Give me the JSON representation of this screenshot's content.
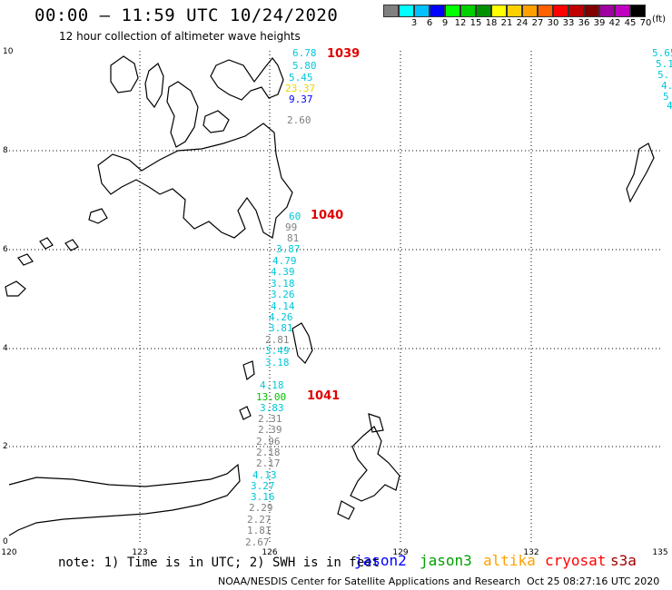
{
  "header": {
    "title": "00:00 – 11:59 UTC 10/24/2020",
    "subtitle": "12 hour collection of altimeter wave heights"
  },
  "legend": {
    "units": "(ft)",
    "bins": [
      {
        "label": "",
        "color": "#808080"
      },
      {
        "label": "3",
        "color": "#00ffff"
      },
      {
        "label": "6",
        "color": "#00c0ff"
      },
      {
        "label": "9",
        "color": "#0000ff"
      },
      {
        "label": "12",
        "color": "#00ff00"
      },
      {
        "label": "15",
        "color": "#00d000"
      },
      {
        "label": "18",
        "color": "#009000"
      },
      {
        "label": "21",
        "color": "#ffff00"
      },
      {
        "label": "24",
        "color": "#ffd000"
      },
      {
        "label": "27",
        "color": "#ffa000"
      },
      {
        "label": "30",
        "color": "#ff6000"
      },
      {
        "label": "33",
        "color": "#ff0000"
      },
      {
        "label": "36",
        "color": "#c00000"
      },
      {
        "label": "39",
        "color": "#800000"
      },
      {
        "label": "42",
        "color": "#a000a0"
      },
      {
        "label": "45",
        "color": "#c000c0"
      },
      {
        "label": "70",
        "color": "#000000"
      }
    ]
  },
  "axes": {
    "lat_ticks": [
      "10",
      "8",
      "6",
      "4",
      "2",
      "0"
    ],
    "lon_ticks": [
      "120",
      "123",
      "126",
      "129",
      "132",
      "135"
    ]
  },
  "tracks": {
    "rev_labels": [
      "1039",
      "1040",
      "1041"
    ],
    "main": [
      {
        "value": "6.78",
        "color": "#00c8d8"
      },
      {
        "value": "5.80",
        "color": "#00c8d8"
      },
      {
        "value": "5.45",
        "color": "#00c8d8"
      },
      {
        "value": "23.37",
        "color": "#e8d800"
      },
      {
        "value": "9.37",
        "color": "#0000ff"
      },
      {
        "value": "2.60",
        "color": "#808080"
      },
      {
        "value": "60",
        "color": "#00c8d8"
      },
      {
        "value": "99",
        "color": "#808080"
      },
      {
        "value": "81",
        "color": "#808080"
      },
      {
        "value": "3.87",
        "color": "#00c8d8"
      },
      {
        "value": "4.79",
        "color": "#00c8d8"
      },
      {
        "value": "4.39",
        "color": "#00c8d8"
      },
      {
        "value": "3.18",
        "color": "#00c8d8"
      },
      {
        "value": "3.26",
        "color": "#00c8d8"
      },
      {
        "value": "4.14",
        "color": "#00c8d8"
      },
      {
        "value": "4.26",
        "color": "#00c8d8"
      },
      {
        "value": "3.81",
        "color": "#00c8d8"
      },
      {
        "value": "2.81",
        "color": "#808080"
      },
      {
        "value": "3.49",
        "color": "#00c8d8"
      },
      {
        "value": "3.18",
        "color": "#00c8d8"
      },
      {
        "value": "4.18",
        "color": "#00c8d8"
      },
      {
        "value": "13.00",
        "color": "#00c000"
      },
      {
        "value": "3.83",
        "color": "#00c8d8"
      },
      {
        "value": "2.31",
        "color": "#808080"
      },
      {
        "value": "2.39",
        "color": "#808080"
      },
      {
        "value": "2.96",
        "color": "#808080"
      },
      {
        "value": "2.18",
        "color": "#808080"
      },
      {
        "value": "2.17",
        "color": "#808080"
      },
      {
        "value": "4.13",
        "color": "#00c8d8"
      },
      {
        "value": "3.27",
        "color": "#00c8d8"
      },
      {
        "value": "3.16",
        "color": "#00c8d8"
      },
      {
        "value": "2.29",
        "color": "#808080"
      },
      {
        "value": "2.27",
        "color": "#808080"
      },
      {
        "value": "1.81",
        "color": "#808080"
      },
      {
        "value": "2.67",
        "color": "#808080"
      }
    ],
    "edge": [
      {
        "value": "5.65",
        "color": "#00c8d8"
      },
      {
        "value": "5.1",
        "color": "#00c8d8"
      },
      {
        "value": "5.",
        "color": "#00c8d8"
      },
      {
        "value": "4.",
        "color": "#00c8d8"
      },
      {
        "value": "5",
        "color": "#00c8d8"
      },
      {
        "value": "4",
        "color": "#00c8d8"
      }
    ]
  },
  "footer": {
    "note": "note: 1) Time is in UTC; 2) SWH is in feet",
    "satellites": [
      {
        "name": "jason2",
        "color": "#0000ff"
      },
      {
        "name": "jason3",
        "color": "#00a000"
      },
      {
        "name": "altika",
        "color": "#ffa000"
      },
      {
        "name": "cryosat",
        "color": "#ff0000"
      },
      {
        "name": "s3a",
        "color": "#a00000"
      }
    ],
    "credit": "NOAA/NESDIS Center for Satellite Applications and Research",
    "timestamp": "Oct 25 08:27:16 UTC 2020"
  }
}
